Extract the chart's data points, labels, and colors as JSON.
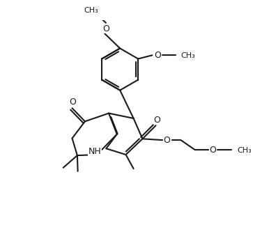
{
  "bg_color": "#ffffff",
  "line_color": "#1a1a1a",
  "line_width": 1.5,
  "font_size": 9,
  "fig_width": 3.88,
  "fig_height": 3.01
}
